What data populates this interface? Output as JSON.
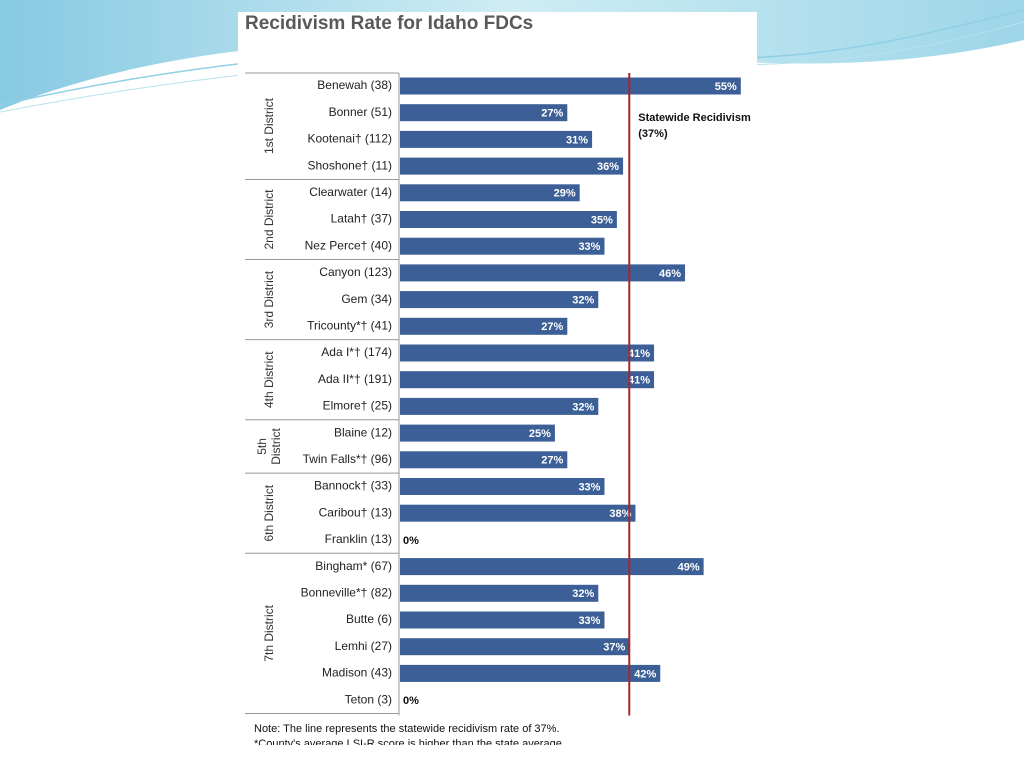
{
  "chart_data": {
    "type": "bar",
    "orientation": "horizontal",
    "title": "Recidivism Rate for Idaho FDCs",
    "categories": [
      "Benewah (38)",
      "Bonner (51)",
      "Kootenai† (112)",
      "Shoshone† (11)",
      "Clearwater (14)",
      "Latah† (37)",
      "Nez Perce† (40)",
      "Canyon (123)",
      "Gem (34)",
      "Tricounty*† (41)",
      "Ada I*† (174)",
      "Ada II*† (191)",
      "Elmore† (25)",
      "Blaine (12)",
      "Twin Falls*† (96)",
      "Bannock† (33)",
      "Caribou† (13)",
      "Franklin (13)",
      "Bingham* (67)",
      "Bonneville*† (82)",
      "Butte (6)",
      "Lemhi (27)",
      "Madison (43)",
      "Teton (3)"
    ],
    "values": [
      55,
      27,
      31,
      36,
      29,
      35,
      33,
      46,
      32,
      27,
      41,
      41,
      32,
      25,
      27,
      33,
      38,
      0,
      49,
      32,
      33,
      37,
      42,
      0
    ],
    "value_labels": [
      "55%",
      "27%",
      "31%",
      "36%",
      "29%",
      "35%",
      "33%",
      "46%",
      "32%",
      "27%",
      "41%",
      "41%",
      "32%",
      "25%",
      "27%",
      "33%",
      "38%",
      "0%",
      "49%",
      "32%",
      "33%",
      "37%",
      "42%",
      "0%"
    ],
    "color": "#3b5f96",
    "xlim": [
      0,
      56
    ],
    "groups": [
      {
        "label": "1st District",
        "size": 4
      },
      {
        "label": "2nd District",
        "size": 3
      },
      {
        "label": "3rd District",
        "size": 3
      },
      {
        "label": "4th District",
        "size": 3
      },
      {
        "label": "5th District",
        "size": 2
      },
      {
        "label": "6th District",
        "size": 3
      },
      {
        "label": "7th District",
        "size": 6
      }
    ],
    "reference_line": {
      "value": 37,
      "label": "Statewide Recidivism",
      "sublabel": "(37%)",
      "color": "#a3282b"
    },
    "notes": [
      "Note: The line represents the statewide recidivism rate of 37%.",
      "*County's average LSI-R score is higher than the state average."
    ]
  }
}
